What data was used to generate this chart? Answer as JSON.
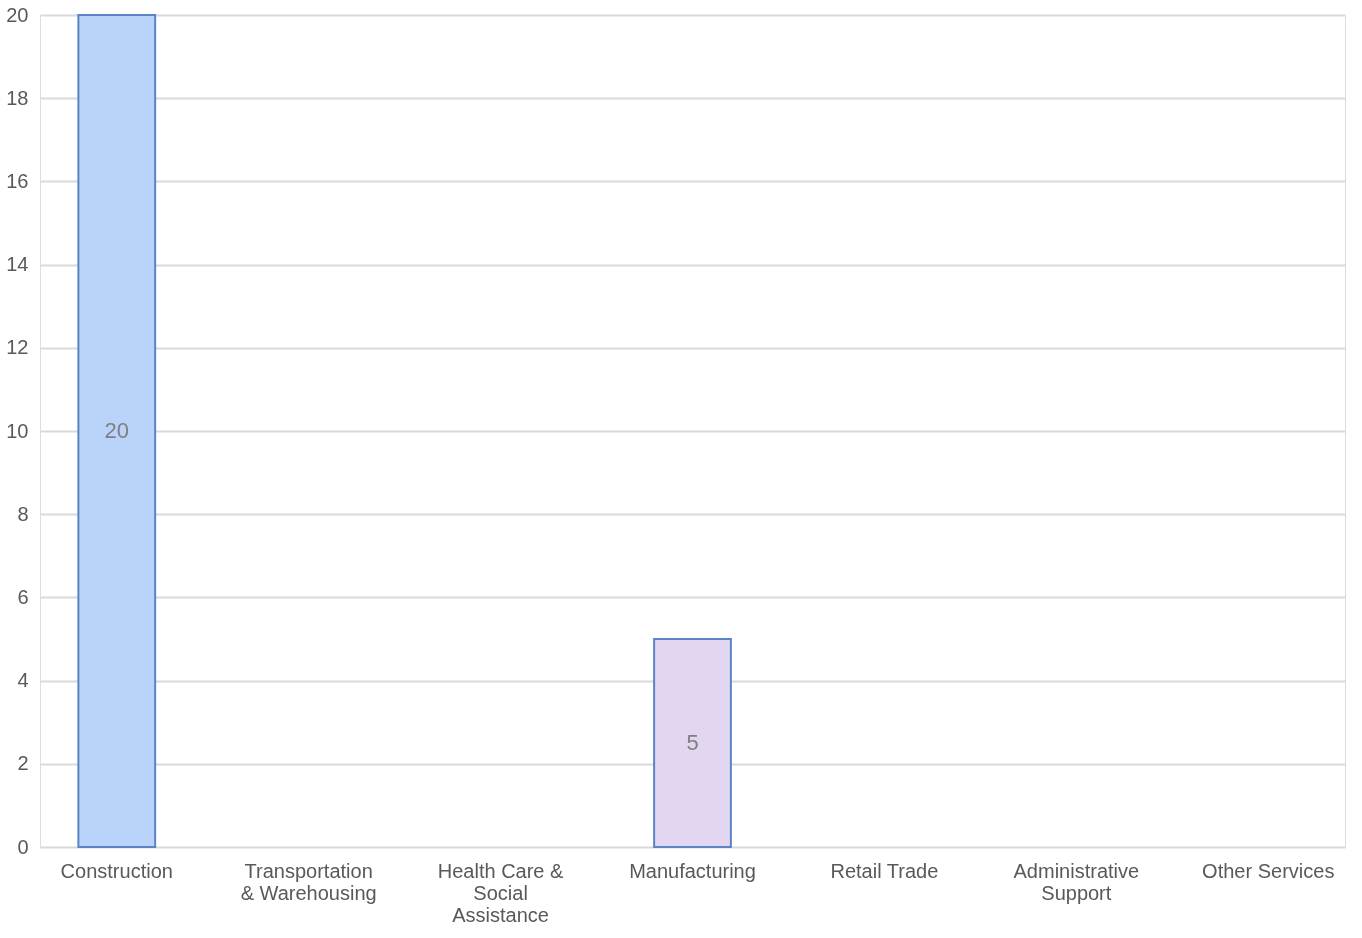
{
  "chart_data": {
    "type": "bar",
    "categories": [
      "Construction",
      "Transportation & Warehousing",
      "Health Care & Social Assistance",
      "Manufacturing",
      "Retail Trade",
      "Administrative Support",
      "Other Services"
    ],
    "values": [
      20,
      0,
      0,
      5,
      0,
      0,
      0
    ],
    "value_labels": [
      "20",
      null,
      null,
      "5",
      null,
      null,
      null
    ],
    "colors": [
      "#b9d3fb",
      "#b9d3fb",
      "#b9d3fb",
      "#e2d6f1",
      "#b9d3fb",
      "#b9d3fb",
      "#b9d3fb"
    ],
    "ylim": [
      0,
      20
    ],
    "yticks": [
      0,
      2,
      4,
      6,
      8,
      10,
      12,
      14,
      16,
      18,
      20
    ],
    "grid": "y"
  }
}
